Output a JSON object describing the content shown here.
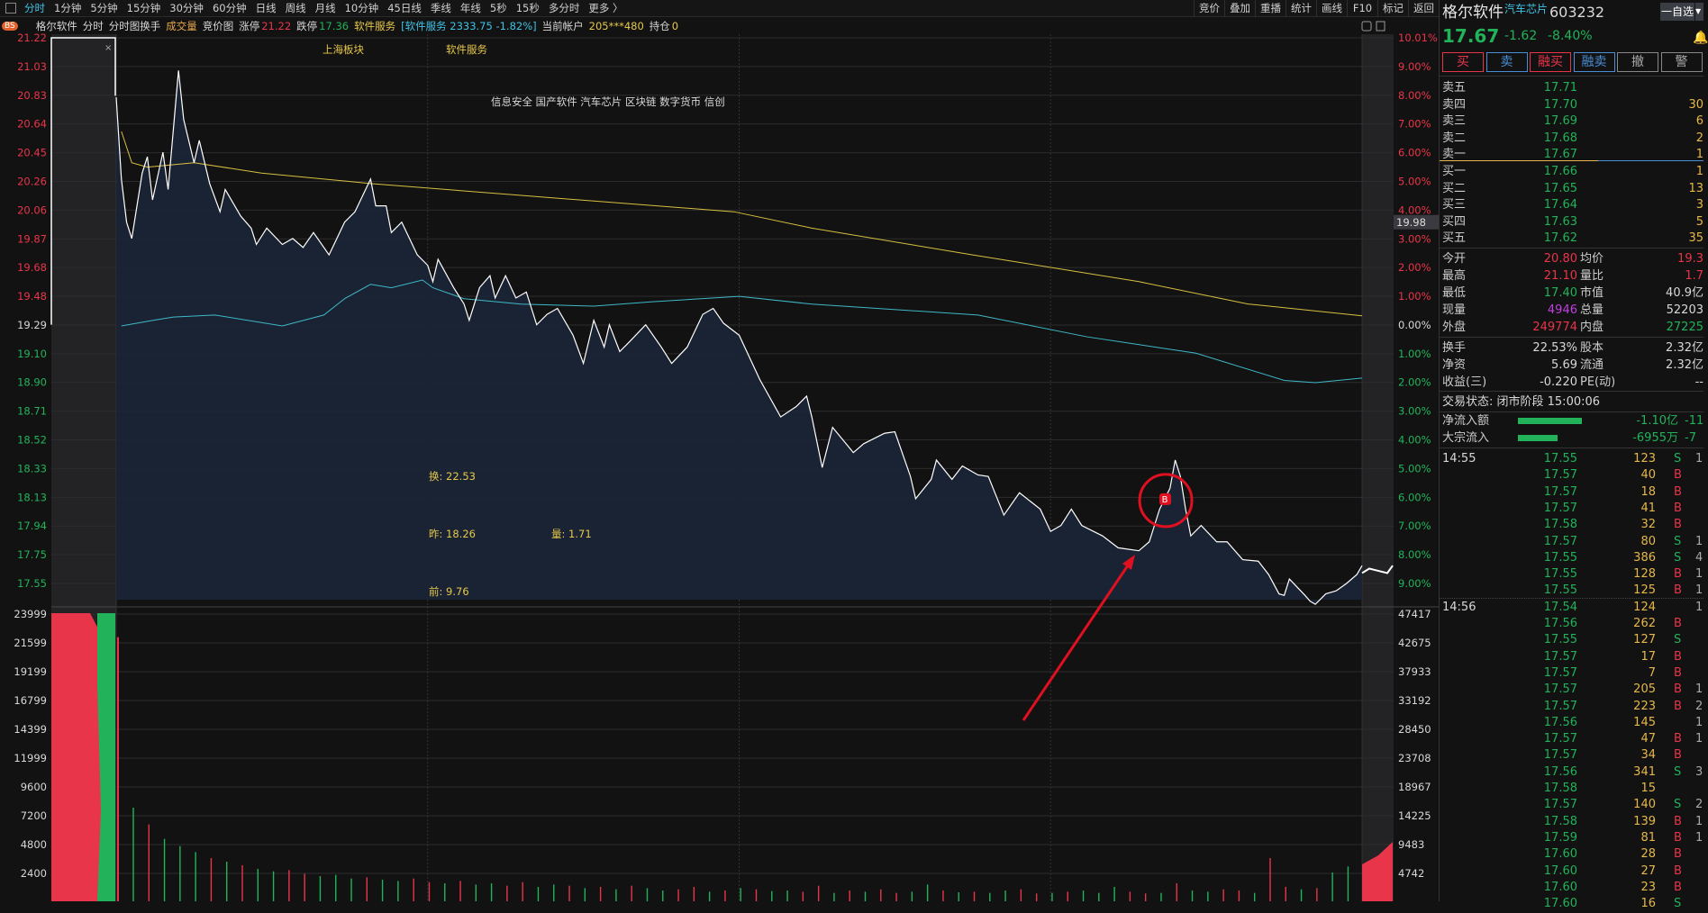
{
  "toolbar": {
    "periods": [
      "分时",
      "1分钟",
      "5分钟",
      "15分钟",
      "30分钟",
      "60分钟",
      "日线",
      "周线",
      "月线",
      "10分钟",
      "45日线",
      "季线",
      "年线",
      "5秒",
      "15秒",
      "多分时",
      "更多 〉"
    ],
    "active": "分时",
    "right_tools": [
      "竞价",
      "叠加",
      "重播",
      "统计",
      "画线",
      "F10",
      "标记",
      "返回"
    ]
  },
  "infobar": {
    "badge": "BS",
    "name": "格尔软件",
    "mode1": "分时",
    "mode2": "分时图换手",
    "volume": "成交量",
    "auction": "竞价图",
    "limit_up_label": "涨停",
    "limit_up": "21.22",
    "limit_down_label": "跌停",
    "limit_down": "17.36",
    "sector": "软件服务",
    "sector_quote": "[软件服务 2333.75 -1.82%]",
    "account_label": "当前帐户",
    "account": "205***480",
    "position_label": "持仓",
    "position": "0"
  },
  "chart_data": {
    "type": "line",
    "price_ticks": [
      "21.22",
      "21.03",
      "20.83",
      "20.64",
      "20.45",
      "20.26",
      "20.06",
      "19.87",
      "19.68",
      "19.48",
      "19.29",
      "19.10",
      "18.90",
      "18.71",
      "18.52",
      "18.33",
      "18.13",
      "17.94",
      "17.75",
      "17.55"
    ],
    "pct_ticks": [
      "10.01%",
      "9.00%",
      "8.00%",
      "7.00%",
      "6.00%",
      "5.00%",
      "4.00%",
      "3.00%",
      "2.00%",
      "1.00%",
      "0.00%",
      "1.00%",
      "2.00%",
      "3.00%",
      "4.00%",
      "5.00%",
      "6.00%",
      "7.00%",
      "8.00%",
      "9.00%"
    ],
    "vol_ticks_left": [
      "23999",
      "21599",
      "19199",
      "16799",
      "14399",
      "11999",
      "9600",
      "7200",
      "4800",
      "2400"
    ],
    "vol_ticks_right": [
      "47417",
      "42675",
      "37933",
      "33192",
      "28450",
      "23708",
      "18967",
      "14225",
      "9483",
      "4742"
    ],
    "ylim": [
      17.55,
      21.22
    ],
    "prev_close": 19.29,
    "cursor_price": "19.98",
    "price": [
      [
        0,
        20.82
      ],
      [
        1,
        20.27
      ],
      [
        2,
        19.98
      ],
      [
        3,
        19.87
      ],
      [
        5,
        20.31
      ],
      [
        6,
        20.42
      ],
      [
        7,
        20.13
      ],
      [
        9,
        20.45
      ],
      [
        10,
        20.2
      ],
      [
        12,
        21.0
      ],
      [
        13,
        20.67
      ],
      [
        15,
        20.38
      ],
      [
        16,
        20.53
      ],
      [
        18,
        20.24
      ],
      [
        20,
        20.05
      ],
      [
        21,
        20.2
      ],
      [
        24,
        20.02
      ],
      [
        26,
        19.94
      ],
      [
        27,
        19.83
      ],
      [
        29,
        19.94
      ],
      [
        32,
        19.83
      ],
      [
        34,
        19.87
      ],
      [
        36,
        19.81
      ],
      [
        38,
        19.91
      ],
      [
        41,
        19.76
      ],
      [
        44,
        19.98
      ],
      [
        46,
        20.05
      ],
      [
        49,
        20.27
      ],
      [
        50,
        20.09
      ],
      [
        52,
        20.09
      ],
      [
        53,
        19.91
      ],
      [
        55,
        19.98
      ],
      [
        58,
        19.76
      ],
      [
        60,
        19.69
      ],
      [
        61,
        19.58
      ],
      [
        62,
        19.73
      ],
      [
        65,
        19.54
      ],
      [
        67,
        19.43
      ],
      [
        68,
        19.32
      ],
      [
        70,
        19.54
      ],
      [
        72,
        19.62
      ],
      [
        73,
        19.47
      ],
      [
        75,
        19.62
      ],
      [
        77,
        19.47
      ],
      [
        79,
        19.51
      ],
      [
        81,
        19.29
      ],
      [
        83,
        19.36
      ],
      [
        85,
        19.4
      ],
      [
        88,
        19.22
      ],
      [
        90,
        19.03
      ],
      [
        92,
        19.32
      ],
      [
        94,
        19.14
      ],
      [
        95,
        19.29
      ],
      [
        97,
        19.11
      ],
      [
        99,
        19.18
      ],
      [
        102,
        19.29
      ],
      [
        105,
        19.14
      ],
      [
        107,
        19.03
      ],
      [
        110,
        19.14
      ],
      [
        113,
        19.36
      ],
      [
        115,
        19.4
      ],
      [
        117,
        19.3
      ],
      [
        120,
        19.22
      ],
      [
        124,
        18.92
      ],
      [
        128,
        18.67
      ],
      [
        131,
        18.74
      ],
      [
        133,
        18.81
      ],
      [
        134,
        18.67
      ],
      [
        136,
        18.33
      ],
      [
        138,
        18.6
      ],
      [
        142,
        18.43
      ],
      [
        144,
        18.49
      ],
      [
        148,
        18.56
      ],
      [
        150,
        18.57
      ],
      [
        153,
        18.27
      ],
      [
        154,
        18.12
      ],
      [
        157,
        18.25
      ],
      [
        158,
        18.38
      ],
      [
        161,
        18.25
      ],
      [
        163,
        18.34
      ],
      [
        166,
        18.28
      ],
      [
        168,
        18.27
      ],
      [
        171,
        18.01
      ],
      [
        174,
        18.16
      ],
      [
        178,
        18.05
      ],
      [
        180,
        17.9
      ],
      [
        182,
        17.94
      ],
      [
        184,
        18.05
      ],
      [
        186,
        17.94
      ],
      [
        190,
        17.87
      ],
      [
        193,
        17.79
      ],
      [
        197,
        17.77
      ],
      [
        199,
        17.83
      ],
      [
        201,
        18.05
      ],
      [
        202,
        18.12
      ],
      [
        203,
        18.19
      ],
      [
        204,
        18.38
      ],
      [
        205,
        18.27
      ],
      [
        206,
        18.05
      ],
      [
        207,
        17.87
      ],
      [
        209,
        17.94
      ],
      [
        212,
        17.83
      ],
      [
        214,
        17.83
      ],
      [
        217,
        17.71
      ],
      [
        220,
        17.7
      ],
      [
        222,
        17.61
      ],
      [
        224,
        17.48
      ],
      [
        225,
        17.47
      ],
      [
        226,
        17.58
      ],
      [
        229,
        17.47
      ],
      [
        230,
        17.43
      ],
      [
        231,
        17.41
      ],
      [
        233,
        17.48
      ],
      [
        235,
        17.5
      ],
      [
        237,
        17.55
      ],
      [
        239,
        17.61
      ],
      [
        240,
        17.67
      ]
    ],
    "avg_price": [
      [
        1,
        20.59
      ],
      [
        3,
        20.38
      ],
      [
        6,
        20.35
      ],
      [
        15,
        20.38
      ],
      [
        28,
        20.31
      ],
      [
        49,
        20.24
      ],
      [
        78,
        20.16
      ],
      [
        119,
        20.05
      ],
      [
        134,
        19.94
      ],
      [
        165,
        19.76
      ],
      [
        197,
        19.58
      ],
      [
        218,
        19.43
      ],
      [
        240,
        19.35
      ]
    ],
    "sector_pct": [
      [
        1,
        -0.04
      ],
      [
        7,
        0.15
      ],
      [
        11,
        0.27
      ],
      [
        19,
        0.34
      ],
      [
        32,
        -0.04
      ],
      [
        40,
        0.34
      ],
      [
        44,
        0.91
      ],
      [
        49,
        1.41
      ],
      [
        53,
        1.29
      ],
      [
        59,
        1.56
      ],
      [
        61,
        1.29
      ],
      [
        67,
        0.91
      ],
      [
        78,
        0.72
      ],
      [
        92,
        0.65
      ],
      [
        103,
        0.8
      ],
      [
        120,
        0.99
      ],
      [
        134,
        0.72
      ],
      [
        166,
        0.34
      ],
      [
        187,
        -0.42
      ],
      [
        208,
        -0.99
      ],
      [
        225,
        -1.94
      ],
      [
        231,
        -2.02
      ],
      [
        240,
        -1.86
      ]
    ],
    "volume": [
      22000,
      7800,
      6400,
      5200,
      4600,
      4100,
      3600,
      3300,
      3000,
      2700,
      2500,
      2600,
      2300,
      2100,
      2200,
      1900,
      2000,
      1800,
      1700,
      1900,
      1600,
      1500,
      1700,
      1400,
      1500,
      1300,
      1600,
      1200,
      1400,
      1300,
      1100,
      1200,
      1000,
      1300,
      1100,
      900,
      1000,
      1200,
      800,
      900,
      1100,
      1000,
      850,
      900,
      800,
      1300,
      700,
      900,
      800,
      1000,
      700,
      800,
      1400,
      900,
      750,
      800,
      700,
      900,
      1000,
      650,
      700,
      800,
      900,
      700,
      1200,
      800,
      650,
      700,
      1500,
      900,
      800,
      1000,
      900,
      700,
      3600,
      1200,
      1000,
      1100,
      2400,
      2900
    ],
    "volume_dirs": "rgrgggrgrggrrgggrggrrgrggrrggrgrgrggrrgrgrggrrgrgrrggrgrggrrgrgggrrgrggrrgrrgrgg",
    "markers": [
      {
        "label": "B",
        "minute": 202,
        "price": 18.12
      }
    ]
  },
  "annotations": {
    "board1": "上海板块",
    "board2": "软件服务",
    "concepts": "信息安全 国产软件 汽车芯片 区块链 数字货币 信创",
    "turnover": "换: 22.53",
    "prev": "昨: 18.26",
    "vol_ratio": "量: 1.71",
    "before": "前: 9.76"
  },
  "quote": {
    "name": "格尔软件",
    "concept": "汽车芯片",
    "code": "603232",
    "watch_btn": "一自选",
    "price": "17.67",
    "change": "-1.62",
    "pct": "-8.40%",
    "buttons": [
      "买",
      "卖",
      "融买",
      "融卖",
      "撤",
      "警"
    ],
    "asks": [
      {
        "label": "卖五",
        "price": "17.71",
        "qty": ""
      },
      {
        "label": "卖四",
        "price": "17.70",
        "qty": "30"
      },
      {
        "label": "卖三",
        "price": "17.69",
        "qty": "6"
      },
      {
        "label": "卖二",
        "price": "17.68",
        "qty": "2"
      },
      {
        "label": "卖一",
        "price": "17.67",
        "qty": "1"
      }
    ],
    "bids": [
      {
        "label": "买一",
        "price": "17.66",
        "qty": "1"
      },
      {
        "label": "买二",
        "price": "17.65",
        "qty": "13"
      },
      {
        "label": "买三",
        "price": "17.64",
        "qty": "3"
      },
      {
        "label": "买四",
        "price": "17.63",
        "qty": "5"
      },
      {
        "label": "买五",
        "price": "17.62",
        "qty": "35"
      }
    ],
    "stats": [
      [
        "今开",
        "20.80",
        "r",
        "均价",
        "19.3",
        "r"
      ],
      [
        "最高",
        "21.10",
        "r",
        "量比",
        "1.7",
        "r"
      ],
      [
        "最低",
        "17.40",
        "g",
        "市值",
        "40.9亿",
        "w"
      ],
      [
        "现量",
        "4946",
        "p",
        "总量",
        "52203",
        "w"
      ],
      [
        "外盘",
        "249774",
        "r",
        "内盘",
        "27225",
        "g"
      ]
    ],
    "stats2": [
      [
        "换手",
        "22.53%",
        "股本",
        "2.32亿"
      ],
      [
        "净资",
        "5.69",
        "流通",
        "2.32亿"
      ],
      [
        "收益(三)",
        "-0.220",
        "PE(动)",
        "--"
      ]
    ],
    "status": "交易状态: 闭市阶段 15:00:06",
    "flows": [
      {
        "label": "净流入额",
        "value": "-1.10亿",
        "extra": "-11",
        "bar": 0.72
      },
      {
        "label": "大宗流入",
        "value": "-6955万",
        "extra": "-7",
        "bar": 0.45
      }
    ],
    "flow_color": "#22b35a"
  },
  "ticks": [
    {
      "time": "14:55",
      "price": "17.55",
      "vol": "123",
      "side": "S",
      "n": "1"
    },
    {
      "price": "17.57",
      "vol": "40",
      "side": "B",
      "n": ""
    },
    {
      "price": "17.57",
      "vol": "18",
      "side": "B",
      "n": ""
    },
    {
      "price": "17.57",
      "vol": "41",
      "side": "B",
      "n": ""
    },
    {
      "price": "17.58",
      "vol": "32",
      "side": "B",
      "n": ""
    },
    {
      "price": "17.57",
      "vol": "80",
      "side": "S",
      "n": "1"
    },
    {
      "price": "17.55",
      "vol": "386",
      "side": "S",
      "n": "4"
    },
    {
      "price": "17.55",
      "vol": "128",
      "side": "B",
      "n": "1"
    },
    {
      "price": "17.55",
      "vol": "125",
      "side": "B",
      "n": "1"
    },
    {
      "time": "14:56",
      "price": "17.54",
      "vol": "124",
      "side": "",
      "n": "1"
    },
    {
      "price": "17.56",
      "vol": "262",
      "side": "B",
      "n": ""
    },
    {
      "price": "17.55",
      "vol": "127",
      "side": "S",
      "n": ""
    },
    {
      "price": "17.57",
      "vol": "17",
      "side": "B",
      "n": ""
    },
    {
      "price": "17.57",
      "vol": "7",
      "side": "B",
      "n": ""
    },
    {
      "price": "17.57",
      "vol": "205",
      "side": "B",
      "n": "1"
    },
    {
      "price": "17.57",
      "vol": "223",
      "side": "B",
      "n": "2"
    },
    {
      "price": "17.56",
      "vol": "145",
      "side": "",
      "n": "1"
    },
    {
      "price": "17.57",
      "vol": "47",
      "side": "B",
      "n": "1"
    },
    {
      "price": "17.57",
      "vol": "34",
      "side": "B",
      "n": ""
    },
    {
      "price": "17.56",
      "vol": "341",
      "side": "S",
      "n": "3"
    },
    {
      "price": "17.58",
      "vol": "15",
      "side": "",
      "n": ""
    },
    {
      "price": "17.57",
      "vol": "140",
      "side": "S",
      "n": "2"
    },
    {
      "price": "17.58",
      "vol": "139",
      "side": "B",
      "n": "1"
    },
    {
      "price": "17.59",
      "vol": "81",
      "side": "B",
      "n": "1"
    },
    {
      "price": "17.60",
      "vol": "28",
      "side": "B",
      "n": ""
    },
    {
      "price": "17.60",
      "vol": "27",
      "side": "B",
      "n": ""
    },
    {
      "price": "17.60",
      "vol": "23",
      "side": "B",
      "n": ""
    },
    {
      "price": "17.60",
      "vol": "16",
      "side": "S",
      "n": ""
    }
  ],
  "colors": {
    "up": "#e8354a",
    "down": "#22b35a",
    "price_line": "#ffffff",
    "avg_line": "#d8c040",
    "sector_line": "#3fb8c8",
    "marker": "#e01020"
  }
}
